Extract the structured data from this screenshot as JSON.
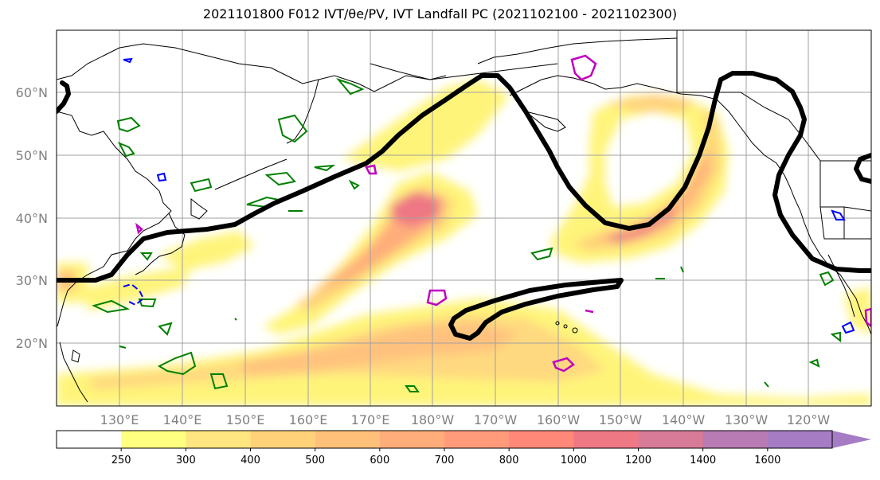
{
  "title": "2021101800 F012 IVT/θe/PV, IVT Landfall PC (2021102100 - 2021102300)",
  "map": {
    "lat_labels": [
      "60°N",
      "50°N",
      "40°N",
      "30°N",
      "20°N"
    ],
    "lon_labels": [
      "130°E",
      "140°E",
      "150°E",
      "160°E",
      "170°E",
      "180°W",
      "170°W",
      "160°W",
      "150°W",
      "140°W",
      "130°W",
      "120°W"
    ],
    "contour_colors": {
      "theta_e": "#000000",
      "pv_green": "#008000",
      "pv_blue": "#0000ff",
      "pv_magenta": "#c000c0"
    }
  },
  "colorbar": {
    "ticks": [
      "250",
      "300",
      "400",
      "500",
      "600",
      "700",
      "800",
      "1000",
      "1200",
      "1400",
      "1600"
    ],
    "colors": [
      "#ffffff",
      "#ffff80",
      "#ffe680",
      "#ffd27a",
      "#ffc07a",
      "#ffad7a",
      "#ff9a7a",
      "#ff8878",
      "#ee7884",
      "#d87b98",
      "#b97bb4",
      "#a67cc5"
    ],
    "extend": "max"
  }
}
